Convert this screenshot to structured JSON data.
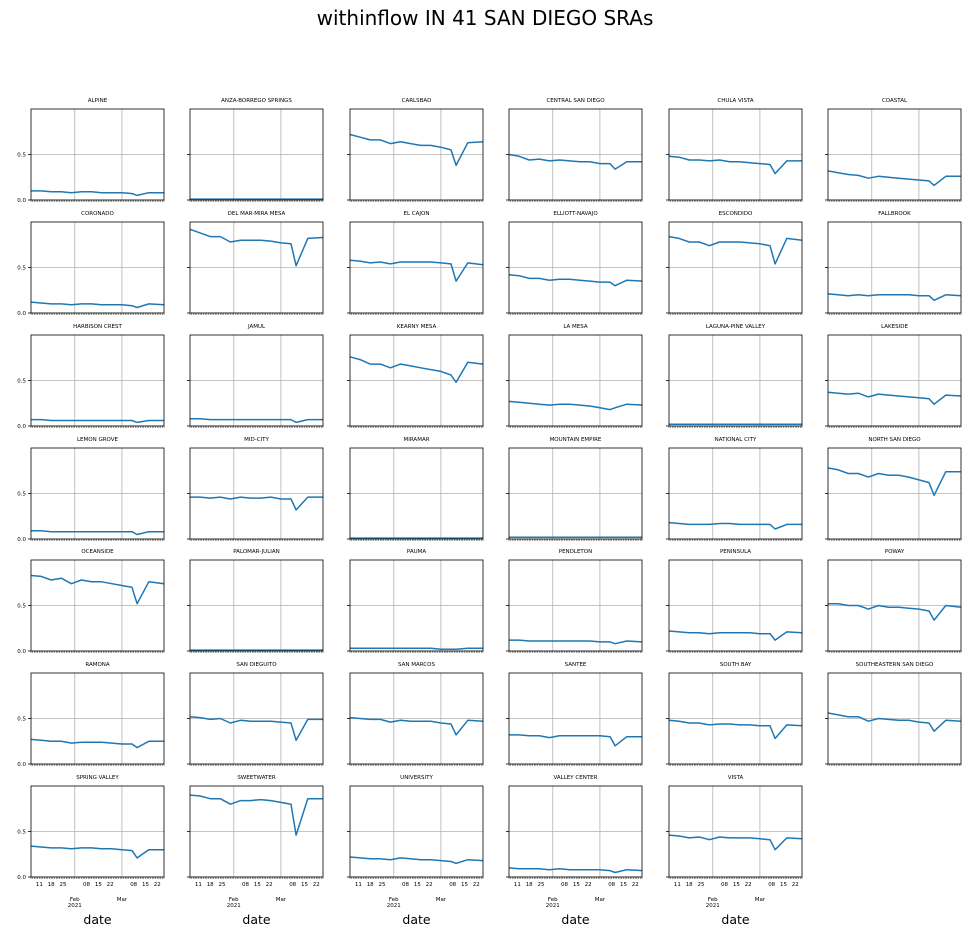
{
  "title": "withinflow IN 41 SAN DIEGO SRAs",
  "chart_data": {
    "type": "line",
    "title": "withinflow IN 41 SAN DIEGO SRAs",
    "layout": {
      "rows": 7,
      "cols": 6
    },
    "xlabel": "date",
    "ylim": [
      0,
      1
    ],
    "yticks": [
      0.0,
      0.5
    ],
    "xlim": [
      "2021-01-06",
      "2021-03-26"
    ],
    "x_tick_labels": [
      {
        "date": "2021-01-11",
        "label": "11"
      },
      {
        "date": "2021-01-18",
        "label": "18"
      },
      {
        "date": "2021-01-25",
        "label": "25"
      },
      {
        "date": "2021-02-08",
        "label": "08"
      },
      {
        "date": "2021-02-15",
        "label": "15"
      },
      {
        "date": "2021-02-22",
        "label": "22"
      },
      {
        "date": "2021-03-08",
        "label": "08"
      },
      {
        "date": "2021-03-15",
        "label": "15"
      },
      {
        "date": "2021-03-22",
        "label": "22"
      }
    ],
    "x_month_labels": [
      {
        "date": "2021-02-01",
        "label": "Feb",
        "year": "2021"
      },
      {
        "date": "2021-03-01",
        "label": "Mar",
        "year": ""
      }
    ],
    "grid": true,
    "line_color": "#1f77b4",
    "series": [
      {
        "name": "ALPINE",
        "values": [
          0.1,
          0.1,
          0.09,
          0.09,
          0.08,
          0.09,
          0.09,
          0.08,
          0.08,
          0.08,
          0.07,
          0.05,
          0.08,
          0.08
        ]
      },
      {
        "name": "ANZA-BORREGO SPRINGS",
        "values": [
          0.01,
          0.01,
          0.01,
          0.01,
          0.01,
          0.01,
          0.01,
          0.01,
          0.01,
          0.01,
          0.01,
          0.01,
          0.01,
          0.01
        ]
      },
      {
        "name": "CARLSBAD",
        "values": [
          0.72,
          0.69,
          0.66,
          0.66,
          0.62,
          0.64,
          0.62,
          0.6,
          0.6,
          0.58,
          0.55,
          0.38,
          0.63,
          0.64
        ]
      },
      {
        "name": "CENTRAL SAN DIEGO",
        "values": [
          0.5,
          0.48,
          0.44,
          0.45,
          0.43,
          0.44,
          0.43,
          0.42,
          0.42,
          0.4,
          0.4,
          0.34,
          0.42,
          0.42
        ]
      },
      {
        "name": "CHULA VISTA",
        "values": [
          0.48,
          0.47,
          0.44,
          0.44,
          0.43,
          0.44,
          0.42,
          0.42,
          0.41,
          0.4,
          0.39,
          0.29,
          0.43,
          0.43
        ]
      },
      {
        "name": "COASTAL",
        "values": [
          0.32,
          0.3,
          0.28,
          0.27,
          0.24,
          0.26,
          0.25,
          0.24,
          0.23,
          0.22,
          0.21,
          0.16,
          0.26,
          0.26
        ]
      },
      {
        "name": "CORONADO",
        "values": [
          0.12,
          0.11,
          0.1,
          0.1,
          0.09,
          0.1,
          0.1,
          0.09,
          0.09,
          0.09,
          0.08,
          0.06,
          0.1,
          0.09
        ]
      },
      {
        "name": "DEL MAR-MIRA MESA",
        "values": [
          0.92,
          0.88,
          0.84,
          0.84,
          0.78,
          0.8,
          0.8,
          0.8,
          0.79,
          0.77,
          0.76,
          0.52,
          0.82,
          0.83
        ]
      },
      {
        "name": "EL CAJON",
        "values": [
          0.58,
          0.57,
          0.55,
          0.56,
          0.54,
          0.56,
          0.56,
          0.56,
          0.56,
          0.55,
          0.54,
          0.35,
          0.55,
          0.53
        ]
      },
      {
        "name": "ELLIOTT-NAVAJO",
        "values": [
          0.42,
          0.41,
          0.38,
          0.38,
          0.36,
          0.37,
          0.37,
          0.36,
          0.35,
          0.34,
          0.34,
          0.3,
          0.36,
          0.35
        ]
      },
      {
        "name": "ESCONDIDO",
        "values": [
          0.84,
          0.82,
          0.78,
          0.78,
          0.74,
          0.78,
          0.78,
          0.78,
          0.77,
          0.76,
          0.74,
          0.54,
          0.82,
          0.8
        ]
      },
      {
        "name": "FALLBROOK",
        "values": [
          0.21,
          0.2,
          0.19,
          0.2,
          0.19,
          0.2,
          0.2,
          0.2,
          0.2,
          0.19,
          0.19,
          0.14,
          0.2,
          0.19
        ]
      },
      {
        "name": "HARBISON CREST",
        "values": [
          0.07,
          0.07,
          0.06,
          0.06,
          0.06,
          0.06,
          0.06,
          0.06,
          0.06,
          0.06,
          0.06,
          0.04,
          0.06,
          0.06
        ]
      },
      {
        "name": "JAMUL",
        "values": [
          0.08,
          0.08,
          0.07,
          0.07,
          0.07,
          0.07,
          0.07,
          0.07,
          0.07,
          0.07,
          0.07,
          0.04,
          0.07,
          0.07
        ]
      },
      {
        "name": "KEARNY MESA",
        "values": [
          0.76,
          0.73,
          0.68,
          0.68,
          0.64,
          0.68,
          0.66,
          0.64,
          0.62,
          0.6,
          0.56,
          0.48,
          0.7,
          0.68
        ]
      },
      {
        "name": "LA MESA",
        "values": [
          0.27,
          0.26,
          0.25,
          0.24,
          0.23,
          0.24,
          0.24,
          0.23,
          0.22,
          0.2,
          0.18,
          0.2,
          0.24,
          0.23
        ]
      },
      {
        "name": "LAGUNA-PINE VALLEY",
        "values": [
          0.02,
          0.02,
          0.02,
          0.02,
          0.02,
          0.02,
          0.02,
          0.02,
          0.02,
          0.02,
          0.02,
          0.02,
          0.02,
          0.02
        ]
      },
      {
        "name": "LAKESIDE",
        "values": [
          0.37,
          0.36,
          0.35,
          0.36,
          0.32,
          0.35,
          0.34,
          0.33,
          0.32,
          0.31,
          0.3,
          0.24,
          0.34,
          0.33
        ]
      },
      {
        "name": "LEMON GROVE",
        "values": [
          0.09,
          0.09,
          0.08,
          0.08,
          0.08,
          0.08,
          0.08,
          0.08,
          0.08,
          0.08,
          0.08,
          0.05,
          0.08,
          0.08
        ]
      },
      {
        "name": "MID-CITY",
        "values": [
          0.46,
          0.46,
          0.45,
          0.46,
          0.44,
          0.46,
          0.45,
          0.45,
          0.46,
          0.44,
          0.44,
          0.32,
          0.46,
          0.46
        ]
      },
      {
        "name": "MIRAMAR",
        "values": [
          0.01,
          0.01,
          0.01,
          0.01,
          0.01,
          0.01,
          0.01,
          0.01,
          0.01,
          0.01,
          0.01,
          0.01,
          0.01,
          0.01
        ]
      },
      {
        "name": "MOUNTAIN EMPIRE",
        "values": [
          0.02,
          0.02,
          0.02,
          0.02,
          0.02,
          0.02,
          0.02,
          0.02,
          0.02,
          0.02,
          0.02,
          0.02,
          0.02,
          0.02
        ]
      },
      {
        "name": "NATIONAL CITY",
        "values": [
          0.18,
          0.17,
          0.16,
          0.16,
          0.16,
          0.17,
          0.17,
          0.16,
          0.16,
          0.16,
          0.16,
          0.11,
          0.16,
          0.16
        ]
      },
      {
        "name": "NORTH SAN DIEGO",
        "values": [
          0.78,
          0.76,
          0.72,
          0.72,
          0.68,
          0.72,
          0.7,
          0.7,
          0.68,
          0.65,
          0.62,
          0.48,
          0.74,
          0.74
        ]
      },
      {
        "name": "OCEANSIDE",
        "values": [
          0.83,
          0.82,
          0.78,
          0.8,
          0.74,
          0.78,
          0.76,
          0.76,
          0.74,
          0.72,
          0.7,
          0.52,
          0.76,
          0.74
        ]
      },
      {
        "name": "PALOMAR-JULIAN",
        "values": [
          0.01,
          0.01,
          0.01,
          0.01,
          0.01,
          0.01,
          0.01,
          0.01,
          0.01,
          0.01,
          0.01,
          0.01,
          0.01,
          0.01
        ]
      },
      {
        "name": "PAUMA",
        "values": [
          0.03,
          0.03,
          0.03,
          0.03,
          0.03,
          0.03,
          0.03,
          0.03,
          0.03,
          0.02,
          0.02,
          0.02,
          0.03,
          0.03
        ]
      },
      {
        "name": "PENDLETON",
        "values": [
          0.12,
          0.12,
          0.11,
          0.11,
          0.11,
          0.11,
          0.11,
          0.11,
          0.11,
          0.1,
          0.1,
          0.08,
          0.11,
          0.1
        ]
      },
      {
        "name": "PENINSULA",
        "values": [
          0.22,
          0.21,
          0.2,
          0.2,
          0.19,
          0.2,
          0.2,
          0.2,
          0.2,
          0.19,
          0.19,
          0.12,
          0.21,
          0.2
        ]
      },
      {
        "name": "POWAY",
        "values": [
          0.52,
          0.52,
          0.5,
          0.5,
          0.46,
          0.5,
          0.48,
          0.48,
          0.47,
          0.46,
          0.44,
          0.34,
          0.5,
          0.48
        ]
      },
      {
        "name": "RAMONA",
        "values": [
          0.27,
          0.26,
          0.25,
          0.25,
          0.23,
          0.24,
          0.24,
          0.24,
          0.23,
          0.22,
          0.22,
          0.18,
          0.25,
          0.25
        ]
      },
      {
        "name": "SAN DIEGUITO",
        "values": [
          0.52,
          0.51,
          0.49,
          0.5,
          0.45,
          0.48,
          0.47,
          0.47,
          0.47,
          0.46,
          0.45,
          0.26,
          0.49,
          0.49
        ]
      },
      {
        "name": "SAN MARCOS",
        "values": [
          0.51,
          0.5,
          0.49,
          0.49,
          0.46,
          0.48,
          0.47,
          0.47,
          0.47,
          0.45,
          0.44,
          0.32,
          0.48,
          0.47
        ]
      },
      {
        "name": "SANTEE",
        "values": [
          0.32,
          0.32,
          0.31,
          0.31,
          0.29,
          0.31,
          0.31,
          0.31,
          0.31,
          0.31,
          0.3,
          0.2,
          0.3,
          0.3
        ]
      },
      {
        "name": "SOUTH BAY",
        "values": [
          0.48,
          0.47,
          0.45,
          0.45,
          0.43,
          0.44,
          0.44,
          0.43,
          0.43,
          0.42,
          0.42,
          0.28,
          0.43,
          0.42
        ]
      },
      {
        "name": "SOUTHEASTERN SAN DIEGO",
        "values": [
          0.56,
          0.54,
          0.52,
          0.52,
          0.47,
          0.5,
          0.49,
          0.48,
          0.48,
          0.46,
          0.45,
          0.36,
          0.48,
          0.47
        ]
      },
      {
        "name": "SPRING VALLEY",
        "values": [
          0.34,
          0.33,
          0.32,
          0.32,
          0.31,
          0.32,
          0.32,
          0.31,
          0.31,
          0.3,
          0.29,
          0.21,
          0.3,
          0.3
        ]
      },
      {
        "name": "SWEETWATER",
        "values": [
          0.9,
          0.89,
          0.86,
          0.86,
          0.8,
          0.84,
          0.84,
          0.85,
          0.84,
          0.82,
          0.8,
          0.46,
          0.86,
          0.86
        ]
      },
      {
        "name": "UNIVERSITY",
        "values": [
          0.22,
          0.21,
          0.2,
          0.2,
          0.19,
          0.21,
          0.2,
          0.19,
          0.19,
          0.18,
          0.17,
          0.15,
          0.19,
          0.18
        ]
      },
      {
        "name": "VALLEY CENTER",
        "values": [
          0.1,
          0.09,
          0.09,
          0.09,
          0.08,
          0.09,
          0.08,
          0.08,
          0.08,
          0.08,
          0.07,
          0.05,
          0.08,
          0.07
        ]
      },
      {
        "name": "VISTA",
        "values": [
          0.46,
          0.45,
          0.43,
          0.44,
          0.41,
          0.44,
          0.43,
          0.43,
          0.43,
          0.42,
          0.41,
          0.3,
          0.43,
          0.42
        ]
      }
    ],
    "x": [
      "2021-01-06",
      "2021-01-12",
      "2021-01-18",
      "2021-01-24",
      "2021-01-30",
      "2021-02-05",
      "2021-02-11",
      "2021-02-17",
      "2021-02-23",
      "2021-03-01",
      "2021-03-07",
      "2021-03-10",
      "2021-03-17",
      "2021-03-26"
    ]
  }
}
